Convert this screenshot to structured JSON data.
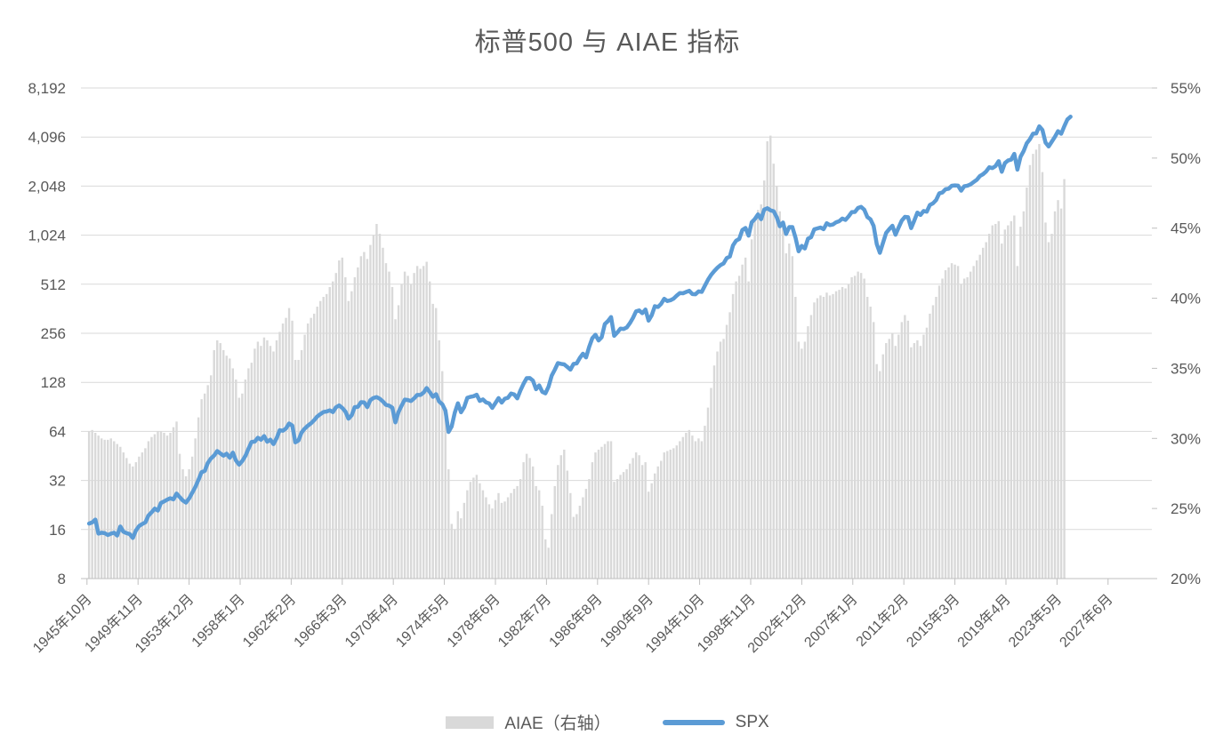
{
  "page": {
    "background": "#FFFFFF"
  },
  "styles": {
    "text_color": "#595959",
    "gridline_color": "#D9D9D9",
    "axis_line_color": "#BFBFBF",
    "bar_color": "#D9D9D9",
    "line_color": "#5B9BD5"
  },
  "chart_data": {
    "type": "combo",
    "title": "标普500 与 AIAE 指标",
    "legend": [
      {
        "label": "AIAE（右轴）",
        "swatch": "bar",
        "color": "#D9D9D9"
      },
      {
        "label": "SPX",
        "swatch": "line",
        "color": "#5B9BD5"
      }
    ],
    "axes": {
      "left": {
        "scale": "log2",
        "tick_labels": [
          "8,192",
          "4,096",
          "2,048",
          "1,024",
          "512",
          "256",
          "128",
          "64",
          "32",
          "16",
          "8"
        ],
        "tick_values": [
          8192,
          4096,
          2048,
          1024,
          512,
          256,
          128,
          64,
          32,
          16,
          8
        ],
        "range": [
          8,
          8192
        ]
      },
      "right": {
        "scale": "linear",
        "tick_labels": [
          "55%",
          "50%",
          "45%",
          "40%",
          "35%",
          "30%",
          "25%",
          "20%"
        ],
        "tick_values": [
          55,
          50,
          45,
          40,
          35,
          30,
          25,
          20
        ],
        "range": [
          20,
          55
        ]
      },
      "x": {
        "start": "1945-10",
        "end_month_offset": 1022,
        "ticks": [
          {
            "label": "1945年10月",
            "month_offset": 0
          },
          {
            "label": "1949年11月",
            "month_offset": 49
          },
          {
            "label": "1953年12月",
            "month_offset": 98
          },
          {
            "label": "1958年1月",
            "month_offset": 147
          },
          {
            "label": "1962年2月",
            "month_offset": 196
          },
          {
            "label": "1966年3月",
            "month_offset": 245
          },
          {
            "label": "1970年4月",
            "month_offset": 294
          },
          {
            "label": "1974年5月",
            "month_offset": 343
          },
          {
            "label": "1978年6月",
            "month_offset": 392
          },
          {
            "label": "1982年7月",
            "month_offset": 441
          },
          {
            "label": "1986年8月",
            "month_offset": 490
          },
          {
            "label": "1990年9月",
            "month_offset": 539
          },
          {
            "label": "1994年10月",
            "month_offset": 588
          },
          {
            "label": "1998年11月",
            "month_offset": 637
          },
          {
            "label": "2002年12月",
            "month_offset": 686
          },
          {
            "label": "2007年1月",
            "month_offset": 735
          },
          {
            "label": "2011年2月",
            "month_offset": 784
          },
          {
            "label": "2015年3月",
            "month_offset": 833
          },
          {
            "label": "2019年4月",
            "month_offset": 882
          },
          {
            "label": "2023年5月",
            "month_offset": 931
          },
          {
            "label": "2027年6月",
            "month_offset": 980
          }
        ]
      }
    },
    "series": [
      {
        "name": "AIAE（右轴）",
        "type": "bar",
        "axis": "right",
        "unit": "%",
        "color": "#D9D9D9",
        "frequency": "quarterly",
        "start_year": 1945,
        "start_quarter": 4,
        "values": [
          30.5,
          30.6,
          30.4,
          30.2,
          30.0,
          29.9,
          29.9,
          30.0,
          29.8,
          29.6,
          29.4,
          29.0,
          28.6,
          28.2,
          28.0,
          28.3,
          28.7,
          29.0,
          29.3,
          29.8,
          30.1,
          30.3,
          30.5,
          30.5,
          30.4,
          30.2,
          30.4,
          30.8,
          31.2,
          28.9,
          27.8,
          27.3,
          27.8,
          28.7,
          30.0,
          31.5,
          32.8,
          33.2,
          33.8,
          34.5,
          36.3,
          37.0,
          36.8,
          36.3,
          35.9,
          35.7,
          35.0,
          34.2,
          32.9,
          33.2,
          34.2,
          35.0,
          35.4,
          36.4,
          36.9,
          36.6,
          37.2,
          37.0,
          36.6,
          36.2,
          37.0,
          37.6,
          38.2,
          38.6,
          39.3,
          38.4,
          35.6,
          35.6,
          36.3,
          37.4,
          38.2,
          38.6,
          38.9,
          39.4,
          39.8,
          40.1,
          40.3,
          40.8,
          41.2,
          41.8,
          42.7,
          42.9,
          41.5,
          39.8,
          40.5,
          41.5,
          42.2,
          43.0,
          43.3,
          42.8,
          43.8,
          44.5,
          45.3,
          44.6,
          43.6,
          42.5,
          41.9,
          40.8,
          38.5,
          39.5,
          41.0,
          41.9,
          41.6,
          41.0,
          41.8,
          42.3,
          42.1,
          42.3,
          42.6,
          41.2,
          39.6,
          39.3,
          37.0,
          34.8,
          32.0,
          27.8,
          23.9,
          23.5,
          24.8,
          24.3,
          25.4,
          26.3,
          26.9,
          27.2,
          27.4,
          26.8,
          26.3,
          25.8,
          25.3,
          25.0,
          25.6,
          26.1,
          25.4,
          25.5,
          25.8,
          26.1,
          26.4,
          26.6,
          27.1,
          28.3,
          28.9,
          28.6,
          28.0,
          26.6,
          26.3,
          25.2,
          22.8,
          22.2,
          24.6,
          26.6,
          28.1,
          28.8,
          29.2,
          27.7,
          26.1,
          24.4,
          24.6,
          25.2,
          25.8,
          26.4,
          27.1,
          28.3,
          29.0,
          29.2,
          29.4,
          29.6,
          29.8,
          29.8,
          26.9,
          27.1,
          27.4,
          27.6,
          27.8,
          28.2,
          28.6,
          29.0,
          28.8,
          28.1,
          28.3,
          26.2,
          26.8,
          27.5,
          28.0,
          28.4,
          29.0,
          29.1,
          29.2,
          29.3,
          29.5,
          29.8,
          30.1,
          30.4,
          30.6,
          30.2,
          29.8,
          30.0,
          29.8,
          30.9,
          32.2,
          33.6,
          35.2,
          36.2,
          36.9,
          37.1,
          38.1,
          39.0,
          40.3,
          41.2,
          41.6,
          42.4,
          42.9,
          41.2,
          44.2,
          45.5,
          46.3,
          46.7,
          48.4,
          51.2,
          51.6,
          49.6,
          48.0,
          46.2,
          45.3,
          43.2,
          43.9,
          43.0,
          40.1,
          36.9,
          36.4,
          36.9,
          38.0,
          38.8,
          39.7,
          40.0,
          40.2,
          40.1,
          40.4,
          40.2,
          40.3,
          40.5,
          40.6,
          40.8,
          40.7,
          41.0,
          41.5,
          41.6,
          41.9,
          41.8,
          41.4,
          40.1,
          39.4,
          38.3,
          35.3,
          34.8,
          36.0,
          36.8,
          37.1,
          37.5,
          36.6,
          37.4,
          38.3,
          38.8,
          38.4,
          36.5,
          36.8,
          37.0,
          36.6,
          37.4,
          37.9,
          38.9,
          39.5,
          40.1,
          40.9,
          41.4,
          42.0,
          42.2,
          42.5,
          42.4,
          42.3,
          41.0,
          41.4,
          41.5,
          41.9,
          42.3,
          42.7,
          43.1,
          43.6,
          44.0,
          44.6,
          45.2,
          45.3,
          45.5,
          43.9,
          44.9,
          45.2,
          45.5,
          45.9,
          42.3,
          45.1,
          46.2,
          47.9,
          49.5,
          50.3,
          50.6,
          51.0,
          49.0,
          45.4,
          44.0,
          44.6,
          46.2,
          47.0,
          46.4,
          48.5
        ]
      },
      {
        "name": "SPX",
        "type": "line",
        "axis": "left",
        "color": "#5B9BD5",
        "frequency": "quarterly",
        "start_year": 1945,
        "start_quarter": 4,
        "values": [
          17.4,
          17.7,
          18.4,
          15.1,
          15.3,
          15.2,
          14.8,
          15.1,
          15.3,
          14.7,
          16.7,
          15.5,
          15.2,
          15.0,
          14.2,
          15.8,
          16.8,
          17.3,
          17.7,
          19.5,
          20.4,
          21.5,
          20.9,
          23.3,
          23.8,
          24.4,
          24.9,
          24.5,
          26.6,
          25.3,
          24.1,
          23.4,
          24.8,
          26.9,
          29.2,
          32.3,
          36.0,
          36.6,
          41.0,
          43.7,
          45.5,
          48.5,
          46.9,
          45.4,
          46.7,
          44.1,
          47.4,
          42.4,
          40.0,
          42.1,
          45.2,
          50.1,
          55.2,
          55.4,
          58.5,
          56.9,
          59.9,
          55.3,
          56.9,
          53.5,
          58.1,
          65.1,
          64.6,
          66.7,
          71.6,
          69.6,
          54.8,
          56.3,
          63.1,
          66.6,
          69.4,
          71.7,
          75.0,
          79.0,
          81.7,
          84.2,
          84.8,
          86.2,
          84.1,
          90.0,
          92.4,
          89.2,
          84.7,
          76.6,
          80.3,
          90.2,
          90.6,
          96.7,
          96.5,
          90.2,
          99.6,
          102.7,
          103.9,
          101.5,
          97.7,
          93.1,
          92.1,
          89.6,
          72.7,
          84.2,
          92.2,
          100.3,
          99.7,
          98.3,
          102.1,
          107.2,
          107.1,
          110.6,
          118.1,
          111.5,
          104.3,
          108.4,
          97.6,
          94.0,
          86.0,
          63.5,
          68.6,
          83.4,
          95.2,
          83.9,
          90.2,
          102.8,
          104.3,
          105.2,
          107.5,
          98.4,
          100.5,
          96.5,
          95.1,
          89.2,
          95.5,
          102.5,
          96.1,
          101.6,
          102.9,
          109.3,
          107.9,
          102.1,
          114.2,
          125.5,
          135.8,
          136.0,
          131.2,
          116.2,
          122.6,
          112.0,
          109.6,
          120.4,
          140.6,
          153.0,
          168.1,
          166.1,
          164.9,
          159.2,
          153.2,
          166.1,
          167.2,
          180.7,
          191.9,
          182.1,
          211.3,
          238.9,
          250.8,
          231.3,
          242.2,
          291.7,
          304.0,
          321.8,
          247.1,
          258.9,
          273.5,
          271.9,
          277.7,
          294.9,
          318.0,
          349.2,
          353.4,
          339.9,
          358.0,
          306.1,
          330.2,
          375.2,
          371.2,
          387.9,
          417.1,
          403.7,
          408.1,
          417.8,
          435.7,
          451.7,
          450.5,
          458.9,
          466.5,
          445.8,
          444.3,
          462.7,
          459.3,
          500.7,
          544.8,
          584.4,
          615.9,
          645.5,
          670.6,
          687.3,
          740.7,
          757.1,
          885.1,
          947.3,
          970.4,
          1101.8,
          1133.8,
          1017.0,
          1229.2,
          1286.4,
          1372.7,
          1282.7,
          1469.3,
          1498.6,
          1454.6,
          1436.5,
          1320.3,
          1160.3,
          1224.4,
          1040.9,
          1148.1,
          1147.4,
          989.8,
          815.3,
          879.8,
          848.2,
          974.5,
          996.0,
          1111.9,
          1126.2,
          1140.8,
          1114.6,
          1211.9,
          1180.6,
          1191.3,
          1228.8,
          1248.3,
          1294.9,
          1270.2,
          1335.9,
          1418.3,
          1420.9,
          1503.4,
          1526.8,
          1468.4,
          1322.7,
          1280.0,
          1166.4,
          903.3,
          797.9,
          919.3,
          1057.1,
          1115.1,
          1169.4,
          1030.7,
          1141.2,
          1257.6,
          1325.8,
          1320.6,
          1131.4,
          1257.6,
          1408.5,
          1362.2,
          1440.7,
          1426.2,
          1569.2,
          1606.3,
          1681.6,
          1848.4,
          1872.3,
          1960.2,
          1972.3,
          2058.9,
          2067.9,
          2063.1,
          1920.0,
          2043.9,
          2059.7,
          2098.9,
          2168.3,
          2238.8,
          2362.7,
          2423.4,
          2519.4,
          2673.6,
          2640.9,
          2718.4,
          2914.0,
          2506.9,
          2834.4,
          2941.8,
          2976.7,
          3230.8,
          2584.6,
          3100.3,
          3363.0,
          3756.1,
          3972.9,
          4297.5,
          4307.5,
          4766.2,
          4530.4,
          3785.4,
          3585.6,
          3839.5,
          4109.3,
          4450.4,
          4288.1,
          4769.8,
          5254.4,
          5460.5
        ]
      }
    ]
  }
}
